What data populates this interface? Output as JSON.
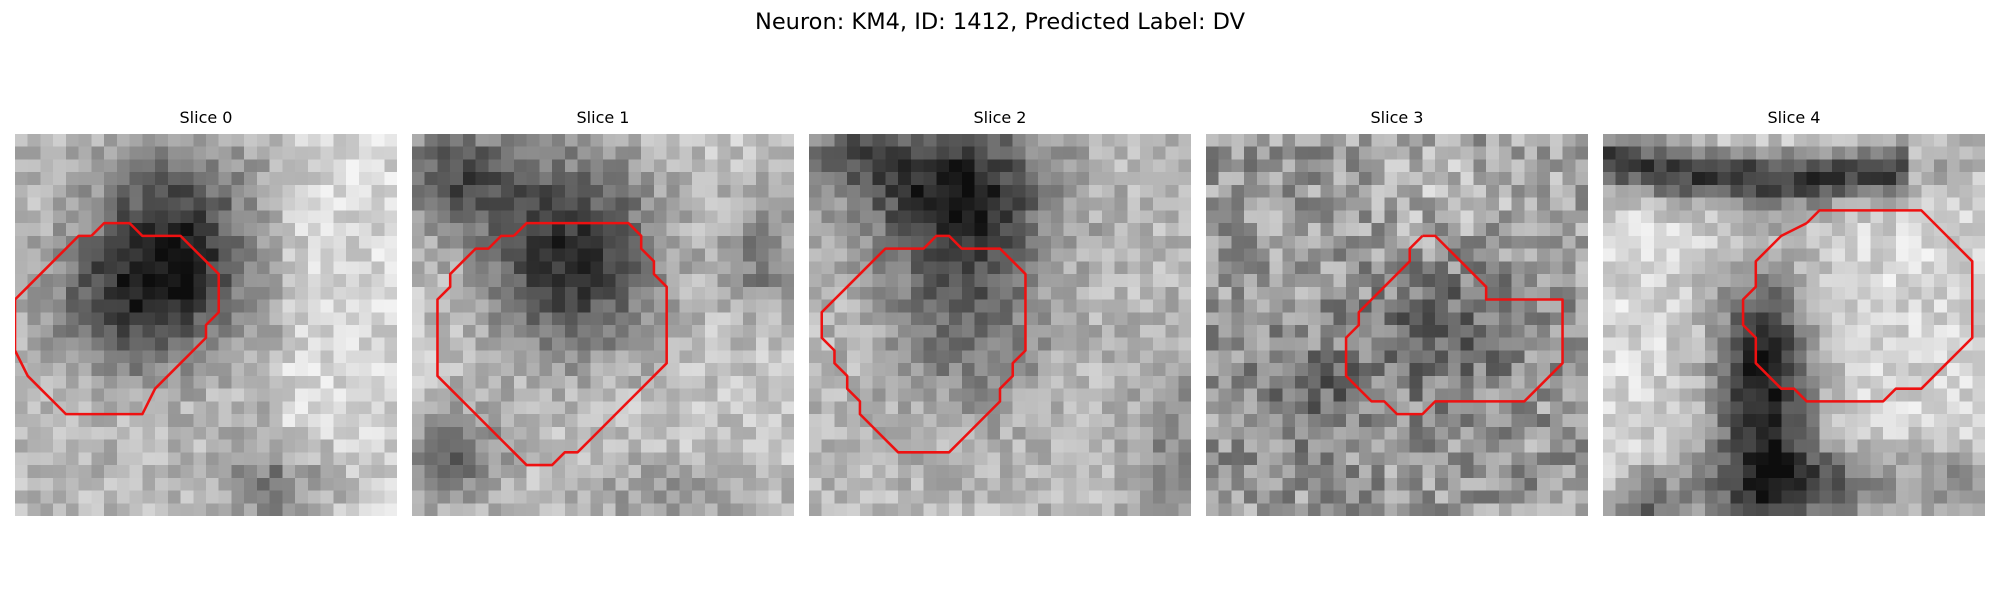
{
  "figure": {
    "title": "Neuron: KM4, ID: 1412, Predicted Label: DV"
  },
  "colors": {
    "contour": "#ee1111"
  },
  "panels": [
    {
      "title": "Slice 0"
    },
    {
      "title": "Slice 1"
    },
    {
      "title": "Slice 2"
    },
    {
      "title": "Slice 3"
    },
    {
      "title": "Slice 4"
    }
  ]
}
